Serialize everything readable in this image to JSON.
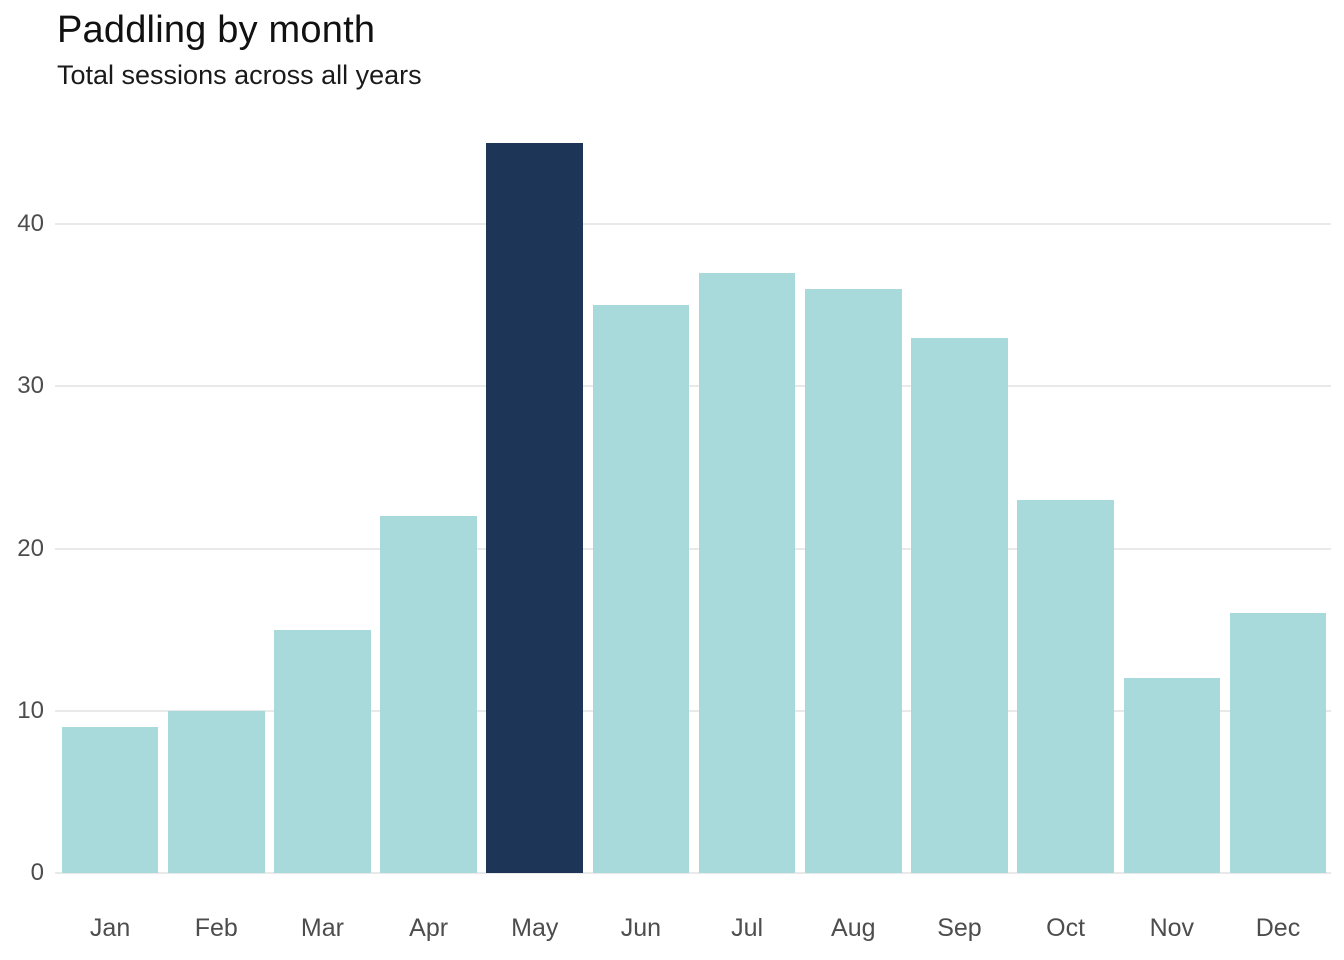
{
  "header": {
    "title": "Paddling by month",
    "subtitle": "Total sessions across all years"
  },
  "chart_data": {
    "type": "bar",
    "title": "Paddling by month",
    "subtitle": "Total sessions across all years",
    "categories": [
      "Jan",
      "Feb",
      "Mar",
      "Apr",
      "May",
      "Jun",
      "Jul",
      "Aug",
      "Sep",
      "Oct",
      "Nov",
      "Dec"
    ],
    "values": [
      9,
      10,
      15,
      22,
      45,
      35,
      37,
      36,
      33,
      23,
      12,
      16
    ],
    "highlight_category": "May",
    "xlabel": "",
    "ylabel": "",
    "yticks": [
      0,
      10,
      20,
      30,
      40
    ],
    "ylim": [
      0,
      46
    ],
    "grid": "horizontal-only",
    "legend": "none",
    "colors": {
      "bar": "#a8dadc",
      "highlight": "#1d3557",
      "gridline": "#e9e9e9",
      "tick_label": "#4d4d4d",
      "title_text": "#111111",
      "background": "#ffffff"
    }
  }
}
